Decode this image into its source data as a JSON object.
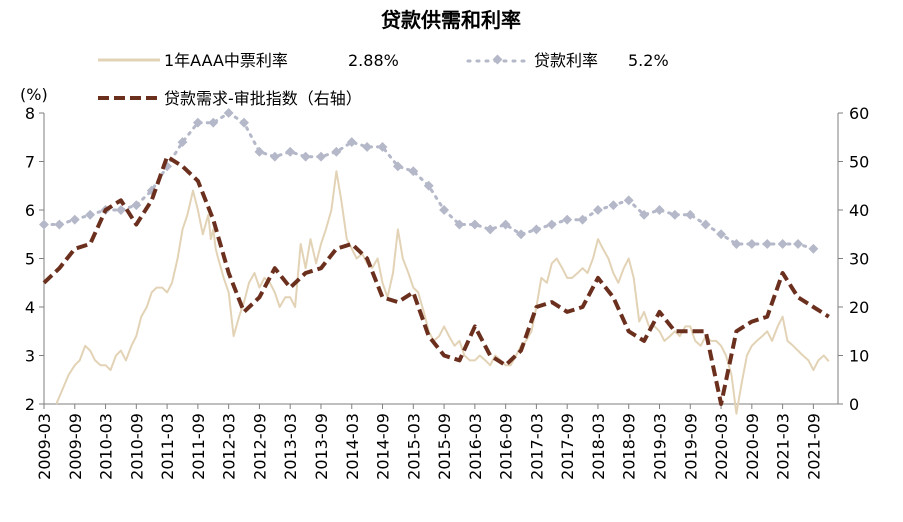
{
  "chart_data": {
    "type": "line",
    "title": "贷款供需和利率",
    "ylabel_left_unit": "(%)",
    "ylim_left": [
      2,
      8
    ],
    "yticks_left": [
      "2",
      "3",
      "4",
      "5",
      "6",
      "7",
      "8"
    ],
    "ylim_right": [
      0,
      60
    ],
    "yticks_right": [
      "0",
      "10",
      "20",
      "30",
      "40",
      "50",
      "60"
    ],
    "x_tick_labels": [
      "2009-03",
      "2009-09",
      "2010-03",
      "2010-09",
      "2011-03",
      "2011-09",
      "2012-03",
      "2012-09",
      "2013-03",
      "2013-09",
      "2014-03",
      "2014-09",
      "2015-03",
      "2015-09",
      "2016-03",
      "2016-09",
      "2017-03",
      "2017-09",
      "2018-03",
      "2018-09",
      "2019-03",
      "2019-09",
      "2020-03",
      "2020-09",
      "2021-03",
      "2021-09"
    ],
    "legend": {
      "entry1": "1年AAA中票利率",
      "value1": "2.88%",
      "entry2": "贷款利率",
      "value2": "5.2%",
      "entry3": "贷款需求-审批指数（右轴）"
    },
    "colors": {
      "mtn": "#e3d3b6",
      "loan_rate": "#b4b8c8",
      "demand": "#6b2f1e",
      "axis": "#7f7f7f"
    },
    "series": [
      {
        "name": "1年AAA中票利率",
        "axis": "left",
        "x": [
          2009.2,
          2009.3,
          2009.4,
          2009.5,
          2009.58,
          2009.67,
          2009.75,
          2009.83,
          2009.92,
          2010.0,
          2010.08,
          2010.17,
          2010.25,
          2010.33,
          2010.42,
          2010.5,
          2010.58,
          2010.67,
          2010.75,
          2010.83,
          2010.92,
          2011.0,
          2011.08,
          2011.17,
          2011.25,
          2011.33,
          2011.42,
          2011.5,
          2011.58,
          2011.67,
          2011.71,
          2011.75,
          2011.79,
          2011.83,
          2011.92,
          2012.0,
          2012.08,
          2012.17,
          2012.25,
          2012.33,
          2012.42,
          2012.5,
          2012.58,
          2012.67,
          2012.75,
          2012.83,
          2012.92,
          2013.0,
          2013.08,
          2013.17,
          2013.25,
          2013.33,
          2013.42,
          2013.5,
          2013.58,
          2013.67,
          2013.75,
          2013.83,
          2013.92,
          2014.0,
          2014.08,
          2014.17,
          2014.25,
          2014.33,
          2014.42,
          2014.5,
          2014.58,
          2014.67,
          2014.75,
          2014.83,
          2014.92,
          2015.0,
          2015.08,
          2015.17,
          2015.25,
          2015.33,
          2015.42,
          2015.5,
          2015.58,
          2015.67,
          2015.75,
          2015.83,
          2015.92,
          2016.0,
          2016.08,
          2016.17,
          2016.25,
          2016.33,
          2016.42,
          2016.5,
          2016.58,
          2016.67,
          2016.75,
          2016.83,
          2016.92,
          2017.0,
          2017.08,
          2017.17,
          2017.25,
          2017.33,
          2017.42,
          2017.5,
          2017.58,
          2017.67,
          2017.75,
          2017.83,
          2017.92,
          2018.0,
          2018.08,
          2018.17,
          2018.25,
          2018.33,
          2018.42,
          2018.5,
          2018.58,
          2018.67,
          2018.75,
          2018.83,
          2018.92,
          2019.0,
          2019.08,
          2019.17,
          2019.25,
          2019.33,
          2019.42,
          2019.5,
          2019.58,
          2019.67,
          2019.75,
          2019.83,
          2019.92,
          2020.0,
          2020.08,
          2020.17,
          2020.25,
          2020.33,
          2020.42,
          2020.5,
          2020.58,
          2020.67,
          2020.75,
          2020.83,
          2020.92,
          2021.0,
          2021.08,
          2021.17,
          2021.25,
          2021.33,
          2021.42,
          2021.5,
          2021.58,
          2021.67,
          2021.75
        ],
        "values": [
          2.0,
          2.3,
          2.6,
          2.8,
          2.9,
          3.2,
          3.1,
          2.9,
          2.8,
          2.8,
          2.7,
          3.0,
          3.1,
          2.9,
          3.2,
          3.4,
          3.8,
          4.0,
          4.3,
          4.4,
          4.4,
          4.3,
          4.5,
          5.0,
          5.6,
          5.9,
          6.4,
          6.0,
          5.5,
          5.9,
          5.4,
          5.6,
          5.2,
          5.0,
          4.6,
          4.3,
          3.4,
          3.8,
          4.1,
          4.5,
          4.7,
          4.4,
          4.6,
          4.5,
          4.3,
          4.0,
          4.2,
          4.2,
          4.0,
          5.3,
          4.8,
          5.4,
          4.9,
          5.3,
          5.6,
          6.0,
          6.8,
          6.2,
          5.4,
          5.2,
          5.0,
          5.1,
          4.9,
          4.8,
          5.0,
          4.5,
          4.2,
          4.7,
          5.6,
          5.0,
          4.7,
          4.4,
          4.3,
          3.9,
          3.5,
          3.3,
          3.4,
          3.6,
          3.4,
          3.2,
          3.3,
          3.0,
          2.9,
          2.9,
          3.0,
          2.9,
          2.8,
          3.0,
          2.9,
          2.8,
          2.8,
          3.0,
          3.2,
          3.3,
          3.5,
          4.0,
          4.6,
          4.5,
          4.9,
          5.0,
          4.8,
          4.6,
          4.6,
          4.7,
          4.8,
          4.7,
          5.0,
          5.4,
          5.2,
          5.0,
          4.7,
          4.5,
          4.8,
          5.0,
          4.6,
          3.7,
          3.9,
          3.6,
          3.6,
          3.5,
          3.3,
          3.4,
          3.5,
          3.4,
          3.6,
          3.6,
          3.3,
          3.2,
          3.4,
          3.3,
          3.3,
          3.2,
          3.0,
          2.6,
          1.8,
          2.4,
          3.0,
          3.2,
          3.3,
          3.4,
          3.5,
          3.3,
          3.6,
          3.8,
          3.3,
          3.2,
          3.1,
          3.0,
          2.9,
          2.7,
          2.9,
          3.0,
          2.88
        ]
      },
      {
        "name": "贷款利率",
        "axis": "left",
        "x": [
          2009.0,
          2009.25,
          2009.5,
          2009.75,
          2010.0,
          2010.25,
          2010.5,
          2010.75,
          2011.0,
          2011.25,
          2011.5,
          2011.75,
          2012.0,
          2012.25,
          2012.5,
          2012.75,
          2013.0,
          2013.25,
          2013.5,
          2013.75,
          2014.0,
          2014.25,
          2014.5,
          2014.75,
          2015.0,
          2015.25,
          2015.5,
          2015.75,
          2016.0,
          2016.25,
          2016.5,
          2016.75,
          2017.0,
          2017.25,
          2017.5,
          2017.75,
          2018.0,
          2018.25,
          2018.5,
          2018.75,
          2019.0,
          2019.25,
          2019.5,
          2019.75,
          2020.0,
          2020.25,
          2020.5,
          2020.75,
          2021.0,
          2021.25,
          2021.5
        ],
        "values": [
          5.7,
          5.7,
          5.8,
          5.9,
          6.0,
          6.0,
          6.1,
          6.4,
          6.9,
          7.4,
          7.8,
          7.8,
          8.0,
          7.8,
          7.2,
          7.1,
          7.2,
          7.1,
          7.1,
          7.2,
          7.4,
          7.3,
          7.3,
          6.9,
          6.8,
          6.5,
          6.0,
          5.7,
          5.7,
          5.6,
          5.7,
          5.5,
          5.6,
          5.7,
          5.8,
          5.8,
          6.0,
          6.1,
          6.2,
          5.9,
          6.0,
          5.9,
          5.9,
          5.7,
          5.5,
          5.3,
          5.3,
          5.3,
          5.3,
          5.3,
          5.2
        ]
      },
      {
        "name": "贷款需求-审批指数（右轴）",
        "axis": "right",
        "x": [
          2009.0,
          2009.25,
          2009.5,
          2009.75,
          2010.0,
          2010.25,
          2010.5,
          2010.75,
          2011.0,
          2011.25,
          2011.5,
          2011.75,
          2012.0,
          2012.25,
          2012.5,
          2012.75,
          2013.0,
          2013.25,
          2013.5,
          2013.75,
          2014.0,
          2014.25,
          2014.5,
          2014.75,
          2015.0,
          2015.25,
          2015.5,
          2015.75,
          2016.0,
          2016.25,
          2016.5,
          2016.75,
          2017.0,
          2017.25,
          2017.5,
          2017.75,
          2018.0,
          2018.25,
          2018.5,
          2018.75,
          2019.0,
          2019.25,
          2019.5,
          2019.75,
          2020.0,
          2020.25,
          2020.5,
          2020.75,
          2021.0,
          2021.25,
          2021.5,
          2021.75
        ],
        "values": [
          25,
          28,
          32,
          33,
          40,
          42,
          37,
          42,
          51,
          49,
          46,
          38,
          27,
          19,
          22,
          28,
          24,
          27,
          28,
          32,
          33,
          30,
          22,
          21,
          23,
          14,
          10,
          9,
          16,
          10,
          8,
          11,
          20,
          21,
          19,
          20,
          26,
          22,
          15,
          13,
          19,
          15,
          15,
          15,
          0,
          15,
          17,
          18,
          27,
          22,
          20,
          18
        ]
      }
    ]
  }
}
